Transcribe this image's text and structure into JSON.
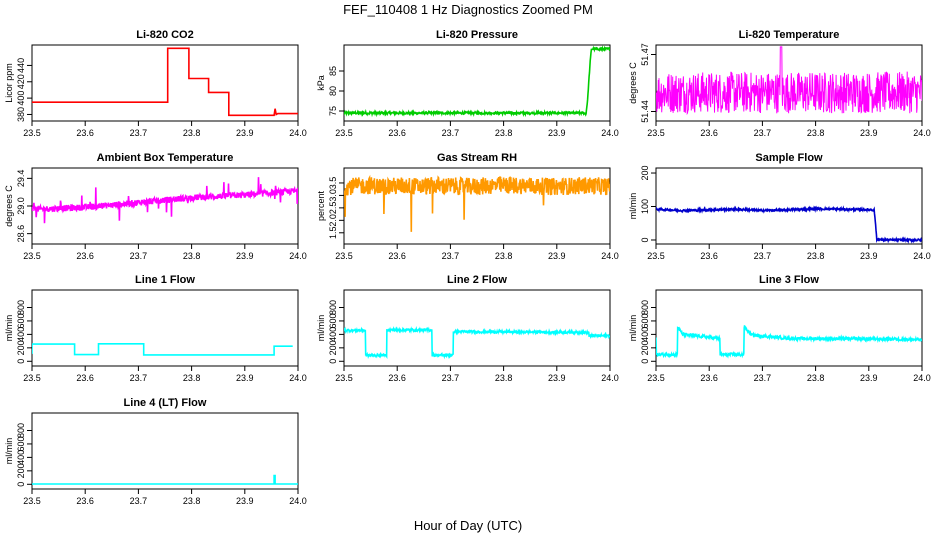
{
  "title": "FEF_110408  1 Hz Diagnostics Zoomed PM",
  "xlabel": "Hour of Day (UTC)",
  "chart_data": [
    {
      "type": "line",
      "title": "Li-820 CO2",
      "ylabel": "Licor ppm",
      "color": "#ff0000",
      "xlim": [
        23.5,
        24.0
      ],
      "ylim": [
        372,
        465
      ],
      "xticks": [
        "23.5",
        "23.6",
        "23.7",
        "23.8",
        "23.9",
        "24.0"
      ],
      "yticks": [
        {
          "v": 380,
          "t": "380"
        },
        {
          "v": 400,
          "t": "400"
        },
        {
          "v": 420,
          "t": "420"
        },
        {
          "v": 440,
          "t": "440"
        }
      ],
      "series": [
        {
          "x": [
            23.5,
            23.755,
            23.755,
            23.795,
            23.795,
            23.832,
            23.832,
            23.87,
            23.87,
            23.955,
            23.957,
            23.959,
            23.962,
            23.962,
            24.0
          ],
          "y": [
            395,
            395,
            461,
            461,
            424,
            424,
            407,
            407,
            379,
            379,
            387,
            380,
            381,
            381,
            381
          ]
        }
      ]
    },
    {
      "type": "line",
      "title": "Li-820 Pressure",
      "ylabel": "kPa",
      "color": "#00cc00",
      "xlim": [
        23.5,
        24.0
      ],
      "ylim": [
        72.5,
        91.5
      ],
      "xticks": [
        "23.5",
        "23.6",
        "23.7",
        "23.8",
        "23.9",
        "24.0"
      ],
      "yticks": [
        {
          "v": 75,
          "t": "75"
        },
        {
          "v": 80,
          "t": "80"
        },
        {
          "v": 85,
          "t": "85"
        }
      ],
      "series": [
        {
          "x": [
            23.5,
            23.95,
            23.955,
            23.958,
            23.962,
            23.965,
            24.0
          ],
          "y": [
            74.5,
            74.5,
            74.3,
            78,
            86,
            90.5,
            90.5
          ]
        }
      ]
    },
    {
      "type": "line",
      "title": "Li-820 Temperature",
      "ylabel": "degrees C",
      "color": "#ff00ff",
      "xlim": [
        23.5,
        24.0
      ],
      "ylim": [
        51.435,
        51.475
      ],
      "xticks": [
        "23.5",
        "23.6",
        "23.7",
        "23.8",
        "23.9",
        "24.0"
      ],
      "yticks": [
        {
          "v": 51.44,
          "t": "51.44"
        },
        {
          "v": 51.47,
          "t": "51.47"
        }
      ],
      "series": [
        {
          "x": [
            23.5,
            23.735,
            23.735,
            23.737,
            23.737,
            24.0
          ],
          "y": [
            51.461,
            51.461,
            51.474,
            51.474,
            51.461,
            51.461
          ]
        }
      ]
    },
    {
      "type": "line",
      "title": "Ambient Box Temperature",
      "ylabel": "degrees C",
      "color": "#ff00ff",
      "xlim": [
        23.5,
        24.0
      ],
      "ylim": [
        28.45,
        29.55
      ],
      "xticks": [
        "23.5",
        "23.6",
        "23.7",
        "23.8",
        "23.9",
        "24.0"
      ],
      "yticks": [
        {
          "v": 28.6,
          "t": "28.6"
        },
        {
          "v": 29.0,
          "t": "29.0"
        },
        {
          "v": 29.4,
          "t": "29.4"
        }
      ],
      "series": [
        {
          "x": [
            23.5,
            23.6,
            23.7,
            23.8,
            23.9,
            24.0
          ],
          "y": [
            28.95,
            28.98,
            29.05,
            29.12,
            29.16,
            29.22
          ]
        }
      ]
    },
    {
      "type": "line",
      "title": "Gas Stream RH",
      "ylabel": "percent",
      "color": "#ff9900",
      "xlim": [
        23.5,
        24.0
      ],
      "ylim": [
        1.05,
        4.1
      ],
      "xticks": [
        "23.5",
        "23.6",
        "23.7",
        "23.8",
        "23.9",
        "24.0"
      ],
      "yticks": [
        {
          "v": 1.5,
          "t": "1.5"
        },
        {
          "v": 2.0,
          "t": "2.0"
        },
        {
          "v": 2.5,
          "t": "2.5"
        },
        {
          "v": 3.0,
          "t": "3.0"
        },
        {
          "v": 3.5,
          "t": "3.5"
        }
      ],
      "series": [
        {
          "x": [
            23.5,
            23.55,
            23.575,
            23.615,
            23.64,
            23.675,
            23.735,
            23.785,
            23.835,
            23.89,
            23.96,
            24.0
          ],
          "y": [
            3.35,
            3.4,
            3.35,
            3.4,
            3.35,
            3.4,
            3.35,
            3.4,
            3.4,
            3.35,
            3.4,
            3.35
          ]
        }
      ]
    },
    {
      "type": "line",
      "title": "Sample Flow",
      "ylabel": "ml/min",
      "color": "#0000cc",
      "xlim": [
        23.5,
        24.0
      ],
      "ylim": [
        -12,
        215
      ],
      "xticks": [
        "23.5",
        "23.6",
        "23.7",
        "23.8",
        "23.9",
        "24.0"
      ],
      "yticks": [
        {
          "v": 0,
          "t": "0"
        },
        {
          "v": 100,
          "t": "100"
        },
        {
          "v": 200,
          "t": "200"
        }
      ],
      "series": [
        {
          "x": [
            23.5,
            23.55,
            23.6,
            23.65,
            23.7,
            23.75,
            23.8,
            23.85,
            23.91,
            23.912,
            23.915,
            23.93,
            24.0
          ],
          "y": [
            92,
            88,
            90,
            92,
            88,
            90,
            93,
            92,
            90,
            60,
            2,
            0,
            0
          ]
        }
      ]
    },
    {
      "type": "line",
      "title": "Line 1 Flow",
      "ylabel": "ml/min",
      "color": "#00ffff",
      "xlim": [
        23.5,
        24.0
      ],
      "ylim": [
        -70,
        1060
      ],
      "xticks": [
        "23.5",
        "23.6",
        "23.7",
        "23.8",
        "23.9",
        "24.0"
      ],
      "yticks": [
        {
          "v": 0,
          "t": "0"
        },
        {
          "v": 200,
          "t": "200"
        },
        {
          "v": 400,
          "t": "400"
        },
        {
          "v": 600,
          "t": "600"
        },
        {
          "v": 800,
          "t": "800"
        }
      ],
      "series": [
        {
          "x": [
            23.5,
            23.5,
            23.58,
            23.58,
            23.625,
            23.625,
            23.71,
            23.71,
            23.955,
            23.955,
            23.99
          ],
          "y": [
            110,
            255,
            255,
            100,
            100,
            260,
            260,
            95,
            95,
            225,
            225
          ]
        }
      ]
    },
    {
      "type": "line",
      "title": "Line 2 Flow",
      "ylabel": "ml/min",
      "color": "#00ffff",
      "xlim": [
        23.5,
        24.0
      ],
      "ylim": [
        -70,
        1060
      ],
      "xticks": [
        "23.5",
        "23.6",
        "23.7",
        "23.8",
        "23.9",
        "24.0"
      ],
      "yticks": [
        {
          "v": 0,
          "t": "0"
        },
        {
          "v": 200,
          "t": "200"
        },
        {
          "v": 400,
          "t": "400"
        },
        {
          "v": 600,
          "t": "600"
        },
        {
          "v": 800,
          "t": "800"
        }
      ],
      "series": [
        {
          "x": [
            23.5,
            23.54,
            23.54,
            23.58,
            23.58,
            23.665,
            23.665,
            23.705,
            23.705,
            23.85,
            23.96,
            23.96,
            23.99
          ],
          "y": [
            460,
            460,
            90,
            90,
            465,
            465,
            90,
            90,
            440,
            435,
            430,
            380,
            380
          ]
        }
      ]
    },
    {
      "type": "line",
      "title": "Line 3 Flow",
      "ylabel": "ml/min",
      "color": "#00ffff",
      "xlim": [
        23.5,
        24.0
      ],
      "ylim": [
        -70,
        1060
      ],
      "xticks": [
        "23.5",
        "23.6",
        "23.7",
        "23.8",
        "23.9",
        "24.0"
      ],
      "yticks": [
        {
          "v": 0,
          "t": "0"
        },
        {
          "v": 200,
          "t": "200"
        },
        {
          "v": 400,
          "t": "400"
        },
        {
          "v": 600,
          "t": "600"
        },
        {
          "v": 800,
          "t": "800"
        }
      ],
      "series": [
        {
          "x": [
            23.5,
            23.5,
            23.54,
            23.54,
            23.55,
            23.62,
            23.62,
            23.665,
            23.665,
            23.68,
            23.75,
            23.85,
            23.95,
            24.0
          ],
          "y": [
            350,
            100,
            100,
            520,
            400,
            340,
            100,
            100,
            520,
            390,
            340,
            335,
            330,
            320
          ]
        }
      ]
    },
    {
      "type": "line",
      "title": "Line 4 (LT) Flow",
      "ylabel": "ml/min",
      "color": "#00ffff",
      "xlim": [
        23.5,
        24.0
      ],
      "ylim": [
        -70,
        1060
      ],
      "xticks": [
        "23.5",
        "23.6",
        "23.7",
        "23.8",
        "23.9",
        "24.0"
      ],
      "yticks": [
        {
          "v": 0,
          "t": "0"
        },
        {
          "v": 200,
          "t": "200"
        },
        {
          "v": 400,
          "t": "400"
        },
        {
          "v": 600,
          "t": "600"
        },
        {
          "v": 800,
          "t": "800"
        }
      ],
      "series": [
        {
          "x": [
            23.5,
            23.955,
            23.955,
            23.957,
            23.957,
            24.0
          ],
          "y": [
            5,
            5,
            130,
            130,
            5,
            5
          ]
        }
      ]
    }
  ]
}
